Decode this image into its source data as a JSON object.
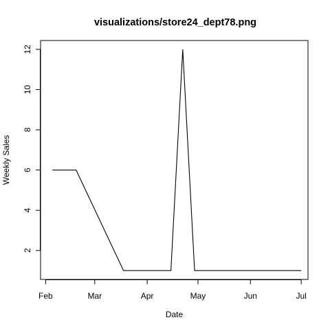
{
  "chart_data": {
    "type": "line",
    "title": "visualizations/store24_dept78.png",
    "xlabel": "Date",
    "ylabel": "Weekly Sales",
    "x_tick_labels": [
      "Feb",
      "Mar",
      "Apr",
      "May",
      "Jun",
      "Jul"
    ],
    "x_tick_dates": [
      "2012-02-01",
      "2012-03-01",
      "2012-04-01",
      "2012-05-01",
      "2012-06-01",
      "2012-07-01"
    ],
    "y_ticks": [
      2,
      4,
      6,
      8,
      10,
      12
    ],
    "xlim": [
      "2012-01-29",
      "2012-07-05"
    ],
    "ylim": [
      0.56,
      12.44
    ],
    "grid": false,
    "series": [
      {
        "color": "#000000",
        "points": [
          {
            "x": "2012-02-05",
            "y": 6
          },
          {
            "x": "2012-02-19",
            "y": 6
          },
          {
            "x": "2012-03-18",
            "y": 1
          },
          {
            "x": "2012-04-15",
            "y": 1
          },
          {
            "x": "2012-04-22",
            "y": 12
          },
          {
            "x": "2012-04-29",
            "y": 1
          },
          {
            "x": "2012-07-01",
            "y": 1
          }
        ]
      }
    ]
  }
}
